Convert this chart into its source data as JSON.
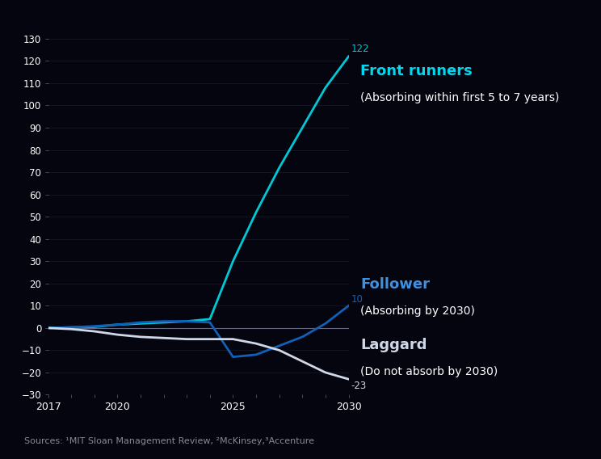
{
  "background_color": "#050510",
  "plot_bg_color": "#050510",
  "xlim": [
    2017,
    2030
  ],
  "ylim": [
    -30,
    135
  ],
  "yticks": [
    -30,
    -20,
    -10,
    0,
    10,
    20,
    30,
    40,
    50,
    60,
    70,
    80,
    90,
    100,
    110,
    120,
    130
  ],
  "xticks": [
    2017,
    2020,
    2025,
    2030
  ],
  "series": {
    "front_runners": {
      "x": [
        2017,
        2018,
        2019,
        2020,
        2021,
        2022,
        2023,
        2024,
        2025,
        2026,
        2027,
        2028,
        2029,
        2030
      ],
      "y": [
        0,
        0.3,
        0.5,
        1.5,
        2,
        2.5,
        3,
        4,
        30,
        52,
        72,
        90,
        108,
        122
      ],
      "color": "#00c8d4",
      "linewidth": 2.0,
      "label": "Front runners",
      "sublabel": "(Absorbing within first 5 to 7 years)",
      "end_value": "122",
      "label_color": "#00d8f0"
    },
    "follower": {
      "x": [
        2017,
        2018,
        2019,
        2020,
        2021,
        2022,
        2023,
        2024,
        2025,
        2026,
        2027,
        2028,
        2029,
        2030
      ],
      "y": [
        0,
        0.3,
        0.8,
        1.5,
        2.5,
        3,
        3,
        2.5,
        -13,
        -12,
        -8,
        -4,
        2,
        10
      ],
      "color": "#1060b8",
      "linewidth": 2.0,
      "label": "Follower",
      "sublabel": "(Absorbing by 2030)",
      "end_value": "10",
      "label_color": "#4090e0"
    },
    "laggard": {
      "x": [
        2017,
        2018,
        2019,
        2020,
        2021,
        2022,
        2023,
        2024,
        2025,
        2026,
        2027,
        2028,
        2029,
        2030
      ],
      "y": [
        0,
        -0.5,
        -1.5,
        -3,
        -4,
        -4.5,
        -5,
        -5,
        -5,
        -7,
        -10,
        -15,
        -20,
        -23
      ],
      "color": "#d0d8e8",
      "linewidth": 2.0,
      "label": "Laggard",
      "sublabel": "(Do not absorb by 2030)",
      "end_value": "-23",
      "label_color": "#d0d8e8"
    }
  },
  "tick_color": "#666680",
  "axis_color": "#666680",
  "grid_color": "#1a1a2e",
  "text_color": "#ffffff",
  "sources_text": "Sources: ¹MIT Sloan Management Review, ²McKinsey,³Accenture",
  "sources_color": "#888898",
  "sources_fontsize": 8,
  "annotation_fontsize": 8.5,
  "label_fontsize": 13,
  "sublabel_fontsize": 10
}
